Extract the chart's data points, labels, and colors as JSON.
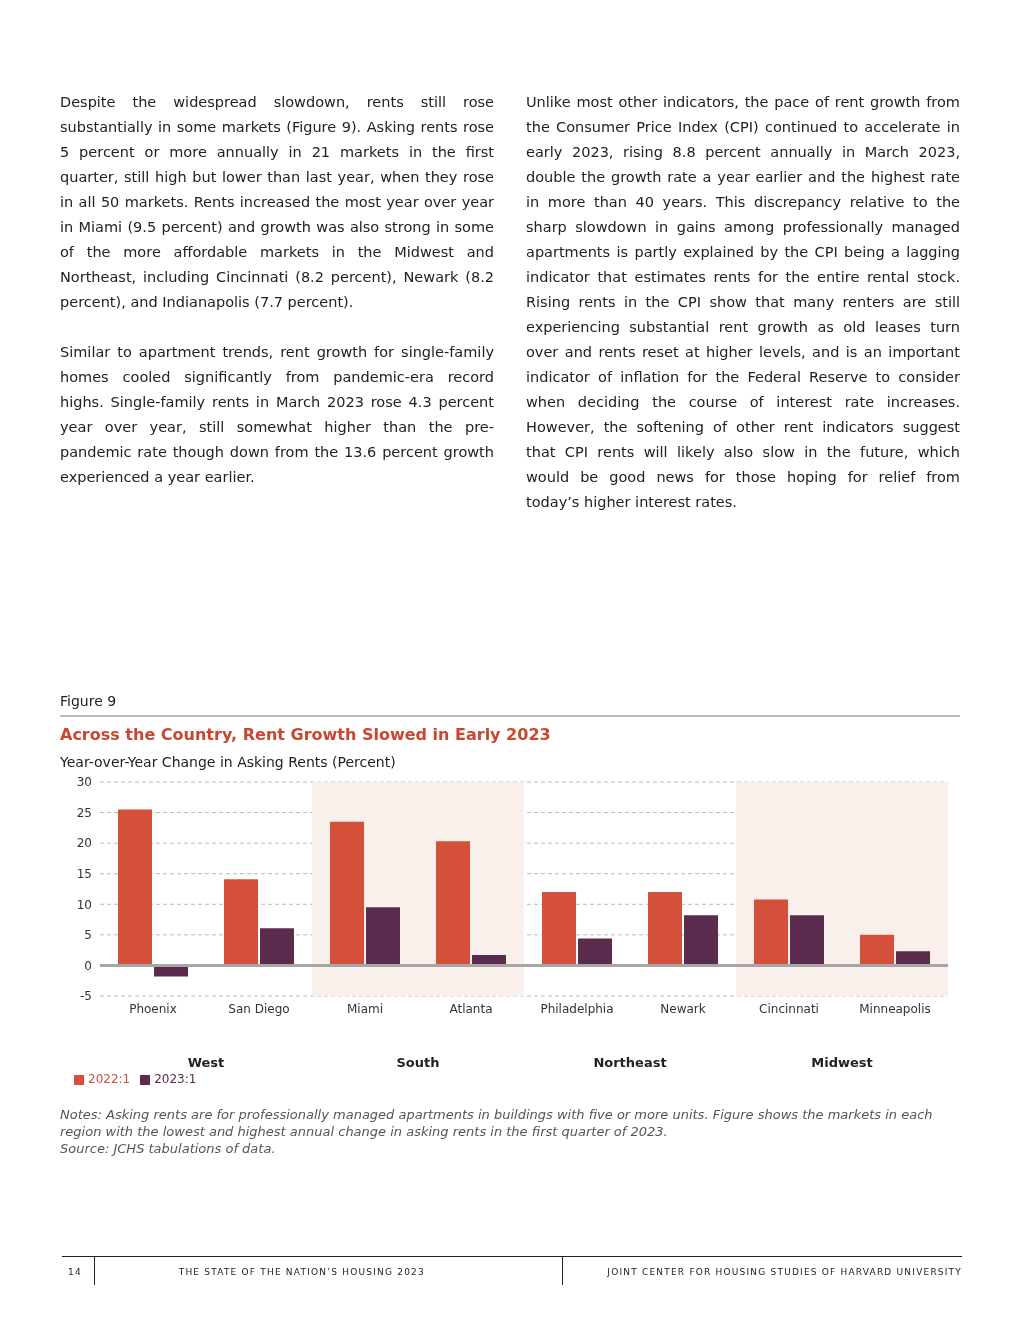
{
  "chart_data": {
    "type": "bar",
    "title": "Across the Country, Rent Growth Slowed in Early 2023",
    "ylabel": "Year-over-Year Change in Asking Rents (Percent)",
    "categories": [
      "Phoenix",
      "San Diego",
      "Miami",
      "Atlanta",
      "Philadelphia",
      "Newark",
      "Cincinnati",
      "Minneapolis"
    ],
    "series": [
      {
        "name": "2022:1",
        "color": "#d4503a",
        "values": [
          25.5,
          14.1,
          23.5,
          20.3,
          12.0,
          12.0,
          10.8,
          5.0
        ]
      },
      {
        "name": "2023:1",
        "color": "#5a2b4c",
        "values": [
          -1.8,
          6.1,
          9.5,
          1.7,
          4.4,
          8.2,
          8.2,
          2.3
        ]
      }
    ],
    "ylim": [
      -5,
      30
    ],
    "yticks": [
      -5,
      0,
      5,
      10,
      15,
      20,
      25,
      30
    ],
    "grid": "y",
    "legend": "bottom left",
    "ref_lines": [
      {
        "axis": "y",
        "value": 0,
        "color": "#a6a6a6"
      }
    ],
    "bands": [
      {
        "axis": "x",
        "from": "Miami",
        "to": "Atlanta",
        "color": "#f9f0ec"
      },
      {
        "axis": "x",
        "from": "Cincinnati",
        "to": "Minneapolis",
        "color": "#f9f0ec"
      }
    ],
    "annotations": [
      "Despite the widespread slowdown, rents still rose substantially in some markets (Figure 9). Asking rents rose 5 percent or more annually in 21 markets in the first quarter, still high but lower than last year, when they rose in all 50 markets. Rents increased the most year over year in Miami (9.5 percent) and growth was also strong in some of the more affordable markets in the Midwest and Northeast, including Cincinnati (8.2 percent), Newark (8.2 percent), and Indianapolis (7.7 percent).",
      "Similar to apartment trends, rent growth for single-family homes cooled significantly from pandemic-era record highs. Single-family rents in March 2023 rose 4.3 percent year over year, still somewhat higher than the pre-pandemic rate though down from the 13.6 percent growth experienced a year earlier.",
      "Unlike most other indicators, the pace of rent growth from the Consumer Price Index (CPI) continued to accelerate in early 2023, rising 8.8 percent annually in March 2023, double the growth rate a year earlier and the highest rate in more than 40 years. This discrepancy relative to the sharp slowdown in gains among professionally managed apartments is partly explained by the CPI being a lagging indicator that estimates rents for the entire rental stock. Rising rents in the CPI show that many renters are still experiencing substantial rent growth as old leases turn over and rents reset at higher levels, and is an important indicator of inflation for the Federal Reserve to consider when deciding the course of interest rate increases. However, the softening of other rent indicators suggest that CPI rents will likely also slow in the future, which would be good news for those hoping for relief from today’s higher interest rates.",
      "Figure 9",
      "West",
      "South",
      "Northeast",
      "Midwest",
      "Notes: Asking rents are for professionally managed apartments in buildings with five or more units. Figure shows the markets in each region with the lowest and highest annual change in asking rents in the first quarter of 2023.",
      "Source: JCHS tabulations of data.",
      "14",
      "THE STATE OF THE NATION’S HOUSING 2023",
      "JOINT CENTER FOR HOUSING STUDIES OF HARVARD UNIVERSITY"
    ]
  }
}
